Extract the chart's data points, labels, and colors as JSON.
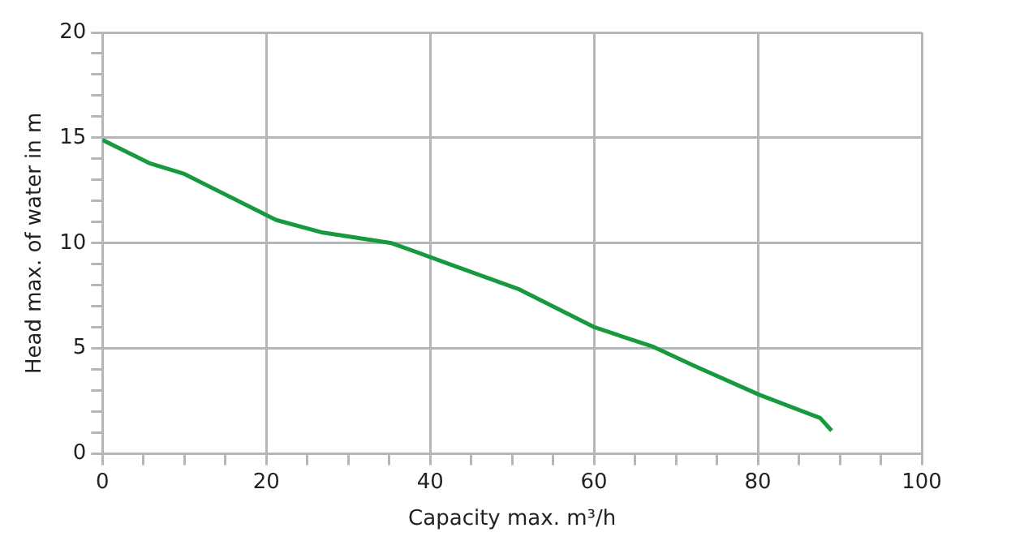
{
  "chart_data": {
    "type": "line",
    "xlabel": "Capacity max. m³/h",
    "ylabel": "Head max. of water in m",
    "x": [
      0,
      5.7,
      9.9,
      21.2,
      26.9,
      35.3,
      42.4,
      50.9,
      60.1,
      67.1,
      72.1,
      80.2,
      87.6,
      89.0
    ],
    "series": [
      {
        "color": "#179a3e",
        "values": [
          14.9,
          13.8,
          13.3,
          11.1,
          10.5,
          10.0,
          9.0,
          7.8,
          6.0,
          5.1,
          4.2,
          2.8,
          1.7,
          1.1
        ]
      }
    ],
    "xlim": [
      0,
      100
    ],
    "ylim": [
      0,
      20
    ],
    "xticks": [
      0,
      {
        "value": 5,
        "label": null
      },
      {
        "value": 10,
        "label": null
      },
      {
        "value": 15,
        "label": null
      },
      20,
      {
        "value": 25,
        "label": null
      },
      {
        "value": 30,
        "label": null
      },
      {
        "value": 35,
        "label": null
      },
      40,
      {
        "value": 45,
        "label": null
      },
      {
        "value": 50,
        "label": null
      },
      {
        "value": 55,
        "label": null
      },
      60,
      {
        "value": 65,
        "label": null
      },
      {
        "value": 70,
        "label": null
      },
      {
        "value": 75,
        "label": null
      },
      80,
      {
        "value": 85,
        "label": null
      },
      {
        "value": 90,
        "label": null
      },
      {
        "value": 95,
        "label": null
      },
      100
    ],
    "yticks": [
      0,
      {
        "value": 1,
        "label": null
      },
      {
        "value": 2,
        "label": null
      },
      {
        "value": 3,
        "label": null
      },
      {
        "value": 4,
        "label": null
      },
      5,
      {
        "value": 6,
        "label": null
      },
      {
        "value": 7,
        "label": null
      },
      {
        "value": 8,
        "label": null
      },
      {
        "value": 9,
        "label": null
      },
      10,
      {
        "value": 11,
        "label": null
      },
      {
        "value": 12,
        "label": null
      },
      {
        "value": 13,
        "label": null
      },
      {
        "value": 14,
        "label": null
      },
      15,
      {
        "value": 16,
        "label": null
      },
      {
        "value": 17,
        "label": null
      },
      {
        "value": 18,
        "label": null
      },
      {
        "value": 19,
        "label": null
      },
      20
    ],
    "grid": true,
    "legend": false,
    "marker": "none",
    "line_style": "solid"
  }
}
